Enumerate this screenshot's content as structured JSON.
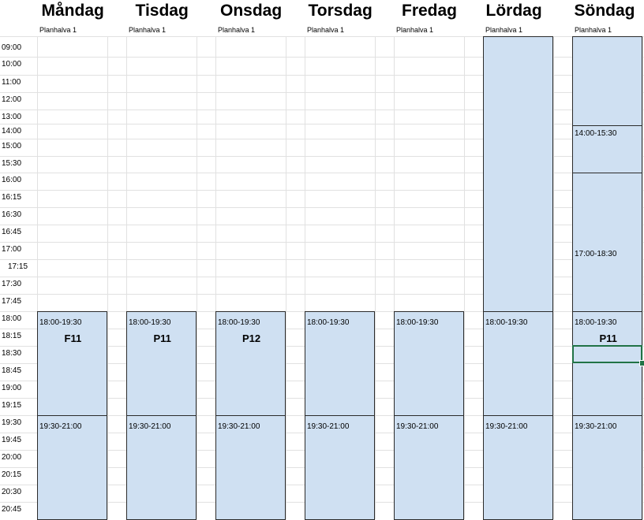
{
  "days": [
    {
      "name": "Måndag",
      "sub": "Planhalva 1"
    },
    {
      "name": "Tisdag",
      "sub": "Planhalva 1"
    },
    {
      "name": "Onsdag",
      "sub": "Planhalva 1"
    },
    {
      "name": "Torsdag",
      "sub": "Planhalva 1"
    },
    {
      "name": "Fredag",
      "sub": "Planhalva 1"
    },
    {
      "name": "Lördag",
      "sub": "Planhalva 1"
    },
    {
      "name": "Söndag",
      "sub": "Planhalva 1"
    }
  ],
  "times": [
    "09:00",
    "10:00",
    "11:00",
    "12:00",
    "13:00",
    "14:00",
    "15:00",
    "15:30",
    "16:00",
    "16:15",
    "16:30",
    "16:45",
    "17:00",
    "17:15",
    "17:30",
    "17:45",
    "18:00",
    "18:15",
    "18:30",
    "18:45",
    "19:00",
    "19:15",
    "19:30",
    "19:45",
    "20:00",
    "20:15",
    "20:30",
    "20:45"
  ],
  "blocks": [
    {
      "day": 0,
      "time": "18:00-19:30",
      "code": "F11"
    },
    {
      "day": 0,
      "time": "19:30-21:00",
      "code": ""
    },
    {
      "day": 1,
      "time": "18:00-19:30",
      "code": "P11"
    },
    {
      "day": 1,
      "time": "19:30-21:00",
      "code": ""
    },
    {
      "day": 2,
      "time": "18:00-19:30",
      "code": "P12"
    },
    {
      "day": 2,
      "time": "19:30-21:00",
      "code": ""
    },
    {
      "day": 3,
      "time": "18:00-19:30",
      "code": ""
    },
    {
      "day": 3,
      "time": "19:30-21:00",
      "code": ""
    },
    {
      "day": 4,
      "time": "18:00-19:30",
      "code": ""
    },
    {
      "day": 4,
      "time": "19:30-21:00",
      "code": ""
    },
    {
      "day": 5,
      "time": "",
      "code": ""
    },
    {
      "day": 5,
      "time": "18:00-19:30",
      "code": ""
    },
    {
      "day": 5,
      "time": "19:30-21:00",
      "code": ""
    },
    {
      "day": 6,
      "time": "",
      "code": ""
    },
    {
      "day": 6,
      "time": "14:00-15:30",
      "code": ""
    },
    {
      "day": 6,
      "time": "17:00-18:30",
      "code": ""
    },
    {
      "day": 6,
      "time": "18:00-19:30",
      "code": "P11"
    },
    {
      "day": 6,
      "time": "19:30-21:00",
      "code": ""
    }
  ],
  "colors": {
    "block_fill": "#cfe0f2",
    "block_border": "#2b2b2b",
    "gridline": "#e1e1e1",
    "selection": "#217346"
  }
}
